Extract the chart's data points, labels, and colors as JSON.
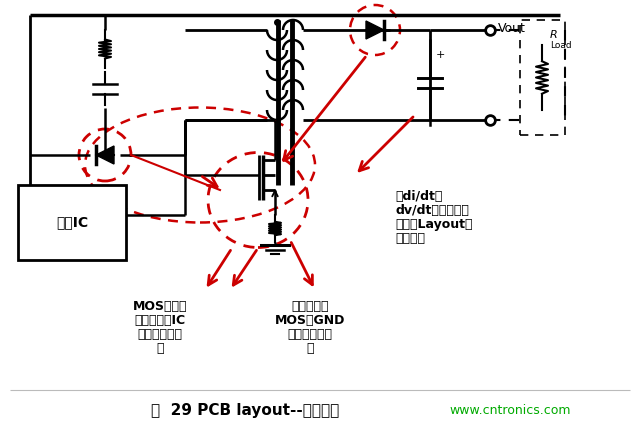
{
  "title": "图  29 PCB layout--高频走线",
  "title_color": "#000000",
  "website": "www.cntronics.com",
  "website_color": "#00aa00",
  "bg_color": "#ffffff",
  "annotation1_line1": "MOS和检流",
  "annotation1_line2": "电阵到控制IC",
  "annotation1_line3": "距离应尽可能",
  "annotation1_line4": "短",
  "annotation2_line1": "检流电阵与",
  "annotation2_line2": "MOS和GND",
  "annotation2_line3": "的距离尽可能",
  "annotation2_line4": "短",
  "annotation3_line1": "高di/dt、",
  "annotation3_line2": "dv/dt，引线尽可",
  "annotation3_line3": "能短，Layout避",
  "annotation3_line4": "免走直角",
  "label_vout": "Vout",
  "label_control": "控制IC",
  "red_color": "#cc0000",
  "circuit_color": "#000000",
  "figsize": [
    6.4,
    4.28
  ],
  "dpi": 100
}
